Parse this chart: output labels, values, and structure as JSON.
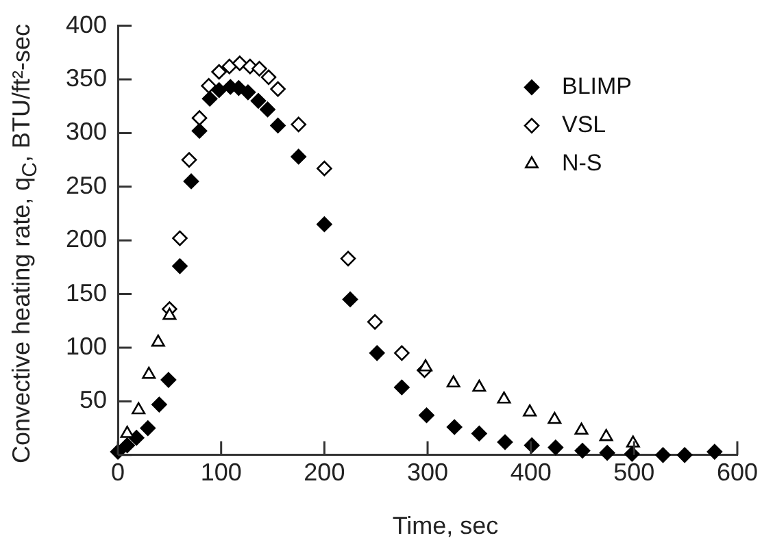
{
  "chart_data": {
    "type": "scatter",
    "xlabel": "Time, sec",
    "ylabel": "Convective heating rate, q$_{C}$, BTU/ft²-sec",
    "xlim": [
      0,
      600
    ],
    "xticks": [
      0,
      100,
      200,
      300,
      400,
      500,
      600
    ],
    "ylim": [
      0,
      400
    ],
    "yticks": [
      {
        "value": 0,
        "label": null
      },
      50,
      100,
      150,
      200,
      250,
      300,
      350,
      400
    ],
    "grid": false,
    "legend": "top right",
    "series": [
      {
        "name": "BLIMP",
        "color": "#000000",
        "marker": "diamond",
        "x": [
          0,
          9,
          18,
          29,
          40,
          49,
          60,
          71,
          79,
          89,
          98,
          109,
          117,
          126,
          136,
          145,
          155,
          175,
          200,
          225,
          251,
          275,
          299,
          326,
          350,
          375,
          401,
          424,
          450,
          474,
          498,
          528,
          549,
          578
        ],
        "values": [
          3,
          9,
          16,
          25,
          47,
          70,
          176,
          255,
          302,
          332,
          340,
          343,
          342,
          338,
          330,
          322,
          307,
          278,
          215,
          145,
          95,
          63,
          37,
          26,
          20,
          12,
          9,
          7,
          4,
          2,
          1,
          0,
          0,
          3
        ]
      },
      {
        "name": "VSL",
        "color": "#000000",
        "marker": "diamond",
        "x": [
          50,
          60,
          69,
          79,
          88,
          98,
          108,
          118,
          128,
          137,
          146,
          155,
          175,
          200,
          223,
          249,
          275,
          297
        ],
        "values": [
          136,
          202,
          275,
          314,
          344,
          357,
          362,
          365,
          362,
          360,
          352,
          341,
          308,
          267,
          183,
          124,
          95,
          79
        ]
      },
      {
        "name": "N-S",
        "color": "#000000",
        "marker": "triangle",
        "x": [
          9,
          20,
          30,
          39,
          50,
          298,
          325,
          350,
          374,
          399,
          423,
          449,
          473,
          499
        ],
        "values": [
          20,
          42,
          75,
          105,
          130,
          82,
          67,
          63,
          52,
          40,
          33,
          23,
          17,
          11
        ]
      }
    ]
  }
}
